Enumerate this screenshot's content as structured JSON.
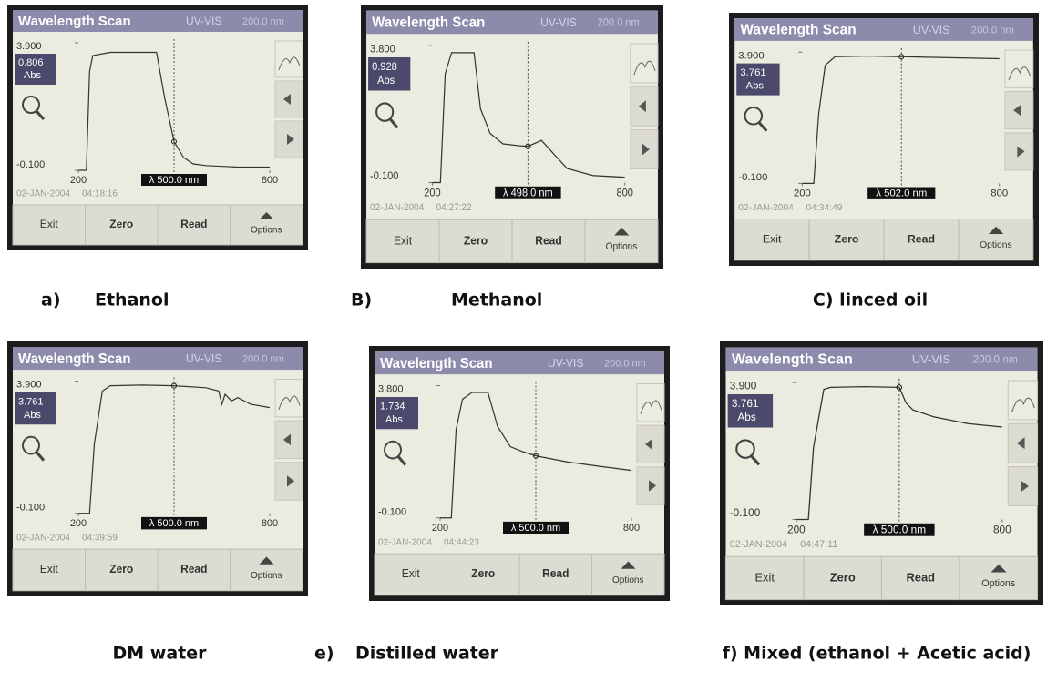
{
  "panels": [
    {
      "screen": {
        "title": "Wavelength Scan",
        "mode": "UV-VIS",
        "setting": "200.0 nm",
        "ylim": [
          -0.1,
          3.9
        ],
        "yticks": [
          {
            "value": 3.9,
            "label": "3.900"
          },
          {
            "value": -0.1,
            "label": "-0.100"
          }
        ],
        "reading": "0.806",
        "unit": "Abs",
        "xlim": [
          200,
          800
        ],
        "xticks": [
          200,
          800
        ],
        "cursor": {
          "value": 500,
          "label": "λ 500.0 nm"
        },
        "date": "02-JAN-2004",
        "time": "04:18:16",
        "buttons": [
          "Exit",
          "Zero",
          "Read",
          "Options"
        ],
        "x": [
          200,
          225,
          235,
          245,
          300,
          400,
          445,
          470,
          500,
          530,
          560,
          600,
          700,
          800
        ],
        "values": [
          -0.1,
          -0.1,
          3.0,
          3.5,
          3.6,
          3.6,
          3.6,
          2.2,
          0.8,
          0.3,
          0.1,
          0.05,
          0.0,
          0.0
        ]
      },
      "caption": {
        "letter": "a)",
        "name": "Ethanol"
      }
    },
    {
      "screen": {
        "title": "Wavelength Scan",
        "mode": "UV-VIS",
        "setting": "200.0 nm",
        "ylim": [
          -0.1,
          3.8
        ],
        "yticks": [
          {
            "value": 3.8,
            "label": "3.800"
          },
          {
            "value": -0.1,
            "label": "-0.100"
          }
        ],
        "reading": "0.928",
        "unit": "Abs",
        "xlim": [
          200,
          800
        ],
        "xticks": [
          200,
          800
        ],
        "cursor": {
          "value": 498,
          "label": "λ 498.0 nm"
        },
        "date": "02-JAN-2004",
        "time": "04:27:22",
        "buttons": [
          "Exit",
          "Zero",
          "Read",
          "Options"
        ],
        "x": [
          200,
          225,
          240,
          260,
          330,
          350,
          380,
          420,
          470,
          498,
          540,
          580,
          620,
          700,
          800
        ],
        "values": [
          -0.1,
          -0.1,
          3.0,
          3.6,
          3.6,
          2.0,
          1.3,
          1.0,
          0.95,
          0.93,
          1.1,
          0.7,
          0.3,
          0.1,
          0.05
        ]
      },
      "caption": {
        "letter": "B)",
        "name": "Methanol"
      }
    },
    {
      "screen": {
        "title": "Wavelength Scan",
        "mode": "UV-VIS",
        "setting": "200.0 nm",
        "ylim": [
          -0.1,
          3.9
        ],
        "yticks": [
          {
            "value": 3.9,
            "label": "3.900"
          },
          {
            "value": -0.1,
            "label": "-0.100"
          }
        ],
        "reading": "3.761",
        "unit": "Abs",
        "xlim": [
          200,
          800
        ],
        "xticks": [
          200,
          800
        ],
        "cursor": {
          "value": 502,
          "label": "λ 502.0 nm"
        },
        "date": "02-JAN-2004",
        "time": "04:34:49",
        "buttons": [
          "Exit",
          "Zero",
          "Read",
          "Options"
        ],
        "x": [
          200,
          235,
          250,
          270,
          300,
          400,
          502,
          600,
          700,
          800
        ],
        "values": [
          -0.1,
          -0.1,
          2.0,
          3.5,
          3.76,
          3.78,
          3.76,
          3.74,
          3.72,
          3.7
        ]
      },
      "caption": {
        "name": "C) linced oil"
      }
    },
    {
      "screen": {
        "title": "Wavelength Scan",
        "mode": "UV-VIS",
        "setting": "200.0 nm",
        "ylim": [
          -0.1,
          3.9
        ],
        "yticks": [
          {
            "value": 3.9,
            "label": "3.900"
          },
          {
            "value": -0.1,
            "label": "-0.100"
          }
        ],
        "reading": "3.761",
        "unit": "Abs",
        "xlim": [
          200,
          800
        ],
        "xticks": [
          200,
          800
        ],
        "cursor": {
          "value": 500,
          "label": "λ 500.0 nm"
        },
        "date": "02-JAN-2004",
        "time": "04:39:59",
        "buttons": [
          "Exit",
          "Zero",
          "Read",
          "Options"
        ],
        "x": [
          200,
          235,
          250,
          275,
          300,
          400,
          500,
          600,
          640,
          650,
          660,
          680,
          700,
          740,
          800
        ],
        "values": [
          -0.1,
          -0.1,
          2.0,
          3.6,
          3.76,
          3.78,
          3.76,
          3.7,
          3.6,
          3.2,
          3.5,
          3.3,
          3.4,
          3.2,
          3.1
        ]
      },
      "caption": {
        "name": "DM water"
      }
    },
    {
      "screen": {
        "title": "Wavelength Scan",
        "mode": "UV-VIS",
        "setting": "200.0 nm",
        "ylim": [
          -0.1,
          3.8
        ],
        "yticks": [
          {
            "value": 3.8,
            "label": "3.800"
          },
          {
            "value": -0.1,
            "label": "-0.100"
          }
        ],
        "reading": "1.734",
        "unit": "Abs",
        "xlim": [
          200,
          800
        ],
        "xticks": [
          200,
          800
        ],
        "cursor": {
          "value": 500,
          "label": "λ 500.0 nm"
        },
        "date": "02-JAN-2004",
        "time": "04:44:23",
        "buttons": [
          "Exit",
          "Zero",
          "Read",
          "Options"
        ],
        "x": [
          200,
          235,
          250,
          270,
          300,
          350,
          380,
          420,
          460,
          500,
          600,
          700,
          800
        ],
        "values": [
          -0.1,
          -0.1,
          2.5,
          3.4,
          3.6,
          3.6,
          2.6,
          2.0,
          1.85,
          1.73,
          1.55,
          1.42,
          1.3
        ]
      },
      "caption": {
        "letter": "e)",
        "name": "Distilled water"
      }
    },
    {
      "screen": {
        "title": "Wavelength Scan",
        "mode": "UV-VIS",
        "setting": "200.0 nm",
        "ylim": [
          -0.1,
          3.9
        ],
        "yticks": [
          {
            "value": 3.9,
            "label": "3.900"
          },
          {
            "value": -0.1,
            "label": "-0.100"
          }
        ],
        "reading": "3.761",
        "unit": "Abs",
        "xlim": [
          200,
          800
        ],
        "xticks": [
          200,
          800
        ],
        "cursor": {
          "value": 500,
          "label": "λ 500.0 nm"
        },
        "date": "02-JAN-2004",
        "time": "04:47:11",
        "buttons": [
          "Exit",
          "Zero",
          "Read",
          "Options"
        ],
        "x": [
          200,
          235,
          250,
          280,
          300,
          400,
          500,
          520,
          540,
          600,
          700,
          800
        ],
        "values": [
          -0.1,
          -0.1,
          2.0,
          3.7,
          3.76,
          3.78,
          3.76,
          3.3,
          3.1,
          2.9,
          2.7,
          2.6
        ]
      },
      "caption": {
        "name": "f) Mixed (ethanol + Acetic acid)"
      }
    }
  ]
}
